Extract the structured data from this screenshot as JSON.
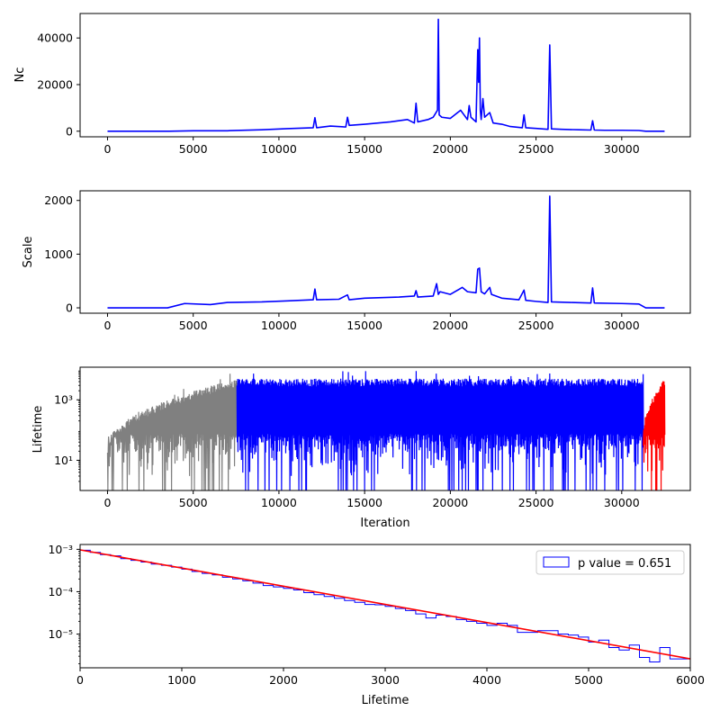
{
  "chart_data": [
    {
      "type": "line",
      "title": "",
      "xlabel": "",
      "ylabel": "Nc",
      "xlim": [
        -1600,
        34000
      ],
      "ylim": [
        -2400,
        50500
      ],
      "xticks": [
        0,
        5000,
        10000,
        15000,
        20000,
        25000,
        30000
      ],
      "xtick_labels": [
        "0",
        "5000",
        "10000",
        "15000",
        "20000",
        "25000",
        "30000"
      ],
      "yticks": [
        0,
        20000,
        40000
      ],
      "ytick_labels": [
        "0",
        "20000",
        "40000"
      ],
      "series": [
        {
          "color": "#0000ff",
          "x": [
            0,
            3600,
            5000,
            7000,
            9000,
            10500,
            12000,
            12100,
            12200,
            13000,
            13900,
            14000,
            14100,
            15000,
            16500,
            17500,
            17900,
            18000,
            18100,
            18700,
            19000,
            19250,
            19300,
            19350,
            19500,
            20000,
            20600,
            21000,
            21100,
            21200,
            21500,
            21600,
            21650,
            21700,
            21750,
            21800,
            21900,
            22000,
            22300,
            22500,
            23000,
            23500,
            24200,
            24300,
            24400,
            25000,
            25700,
            25800,
            25900,
            26500,
            27500,
            28200,
            28300,
            28400,
            29000,
            30000,
            31000,
            31400,
            32500
          ],
          "y": [
            0,
            0,
            200,
            200,
            600,
            1100,
            1500,
            5800,
            1500,
            2200,
            1800,
            6000,
            2500,
            3000,
            4000,
            5000,
            3500,
            12000,
            4000,
            5000,
            6000,
            9000,
            48000,
            7000,
            6000,
            5500,
            9000,
            5000,
            11000,
            6000,
            4000,
            35000,
            21000,
            40000,
            9000,
            5000,
            14000,
            6000,
            8000,
            3500,
            3000,
            2000,
            1500,
            7000,
            1500,
            1200,
            800,
            37000,
            1000,
            800,
            600,
            500,
            4500,
            500,
            400,
            400,
            300,
            0,
            0
          ]
        }
      ]
    },
    {
      "type": "line",
      "title": "",
      "xlabel": "",
      "ylabel": "Scale",
      "xlim": [
        -1600,
        34000
      ],
      "ylim": [
        -100,
        2180
      ],
      "xticks": [
        0,
        5000,
        10000,
        15000,
        20000,
        25000,
        30000
      ],
      "xtick_labels": [
        "0",
        "5000",
        "10000",
        "15000",
        "20000",
        "25000",
        "30000"
      ],
      "yticks": [
        0,
        1000,
        2000
      ],
      "ytick_labels": [
        "0",
        "1000",
        "2000"
      ],
      "series": [
        {
          "color": "#0000ff",
          "x": [
            0,
            3500,
            4500,
            6000,
            7000,
            9000,
            10500,
            12000,
            12100,
            12200,
            13500,
            14000,
            14100,
            15000,
            17000,
            17900,
            18000,
            18100,
            19000,
            19200,
            19300,
            19400,
            20000,
            20700,
            21000,
            21500,
            21600,
            21700,
            21800,
            22000,
            22300,
            22400,
            23000,
            24000,
            24300,
            24400,
            25000,
            25700,
            25800,
            25900,
            27000,
            28200,
            28300,
            28400,
            30000,
            31000,
            31400,
            32500
          ],
          "y": [
            0,
            0,
            80,
            60,
            100,
            110,
            130,
            150,
            350,
            150,
            160,
            240,
            150,
            180,
            200,
            220,
            320,
            200,
            220,
            450,
            250,
            300,
            250,
            380,
            300,
            280,
            720,
            740,
            300,
            260,
            380,
            250,
            180,
            150,
            330,
            140,
            120,
            100,
            2080,
            110,
            100,
            90,
            370,
            90,
            80,
            70,
            0,
            0
          ]
        }
      ]
    },
    {
      "type": "line",
      "title": "",
      "xlabel": "Iteration",
      "ylabel": "Lifetime",
      "scale_y": "log",
      "xlim": [
        -1600,
        34000
      ],
      "ylim": [
        1,
        12000
      ],
      "xticks": [
        0,
        5000,
        10000,
        15000,
        20000,
        25000,
        30000
      ],
      "xtick_labels": [
        "0",
        "5000",
        "10000",
        "15000",
        "20000",
        "25000",
        "30000"
      ],
      "yticks": [
        10,
        1000
      ],
      "ytick_labels": [
        "10¹",
        "10³"
      ],
      "series": [
        {
          "color": "#808080",
          "x_range": [
            0,
            7550
          ],
          "upper_start": 30,
          "upper_end": 5000
        },
        {
          "color": "#0000ff",
          "x_range": [
            7550,
            31250
          ],
          "upper_start": 5000,
          "upper_end": 5000
        },
        {
          "color": "#ff0000",
          "x_range": [
            31250,
            32500
          ],
          "upper_start": 50,
          "upper_end": 5000
        }
      ]
    },
    {
      "type": "line",
      "title": "",
      "xlabel": "Lifetime",
      "ylabel": "",
      "scale_y": "log",
      "xlim": [
        0,
        6000
      ],
      "ylim": [
        1.6e-06,
        0.0013
      ],
      "xticks": [
        0,
        1000,
        2000,
        3000,
        4000,
        5000,
        6000
      ],
      "xtick_labels": [
        "0",
        "1000",
        "2000",
        "3000",
        "4000",
        "5000",
        "6000"
      ],
      "yticks": [
        1e-05,
        0.0001,
        0.001
      ],
      "ytick_labels": [
        "10⁻⁵",
        "10⁻⁴",
        "10⁻³"
      ],
      "legend": {
        "position": "top-right",
        "label": "p value = 0.651"
      },
      "series": [
        {
          "name": "p value = 0.651",
          "kind": "step-histogram",
          "color": "#0000ff",
          "bin_width": 100,
          "x": [
            0,
            100,
            200,
            300,
            400,
            500,
            600,
            700,
            800,
            900,
            1000,
            1100,
            1200,
            1300,
            1400,
            1500,
            1600,
            1700,
            1800,
            1900,
            2000,
            2100,
            2200,
            2300,
            2400,
            2500,
            2600,
            2700,
            2800,
            2900,
            3000,
            3100,
            3200,
            3300,
            3400,
            3500,
            3600,
            3700,
            3800,
            3900,
            4000,
            4100,
            4200,
            4300,
            4400,
            4500,
            4600,
            4700,
            4800,
            4900,
            5000,
            5100,
            5200,
            5300,
            5400,
            5500,
            5600,
            5700,
            5800,
            5900
          ],
          "y": [
            0.00095,
            0.00085,
            0.00075,
            0.0007,
            0.0006,
            0.00055,
            0.0005,
            0.00045,
            0.00042,
            0.00038,
            0.00034,
            0.0003,
            0.00027,
            0.00025,
            0.00022,
            0.0002,
            0.00018,
            0.00016,
            0.00014,
            0.00013,
            0.00012,
            0.00011,
            9.5e-05,
            8.5e-05,
            7.7e-05,
            7e-05,
            6.2e-05,
            5.6e-05,
            5e-05,
            4.9e-05,
            4.5e-05,
            4e-05,
            3.6e-05,
            3e-05,
            2.4e-05,
            2.8e-05,
            2.6e-05,
            2.2e-05,
            2e-05,
            1.8e-05,
            1.6e-05,
            1.8e-05,
            1.6e-05,
            1.1e-05,
            1.1e-05,
            1.2e-05,
            1.2e-05,
            1e-05,
            9.5e-06,
            8.5e-06,
            6.5e-06,
            7.2e-06,
            4.8e-06,
            4.2e-06,
            5.5e-06,
            2.8e-06,
            2.2e-06,
            4.8e-06,
            2.6e-06,
            2.6e-06
          ]
        },
        {
          "kind": "fit",
          "color": "#ff0000",
          "x": [
            0,
            6000
          ],
          "y": [
            0.00097,
            2.6e-06
          ]
        }
      ]
    }
  ]
}
